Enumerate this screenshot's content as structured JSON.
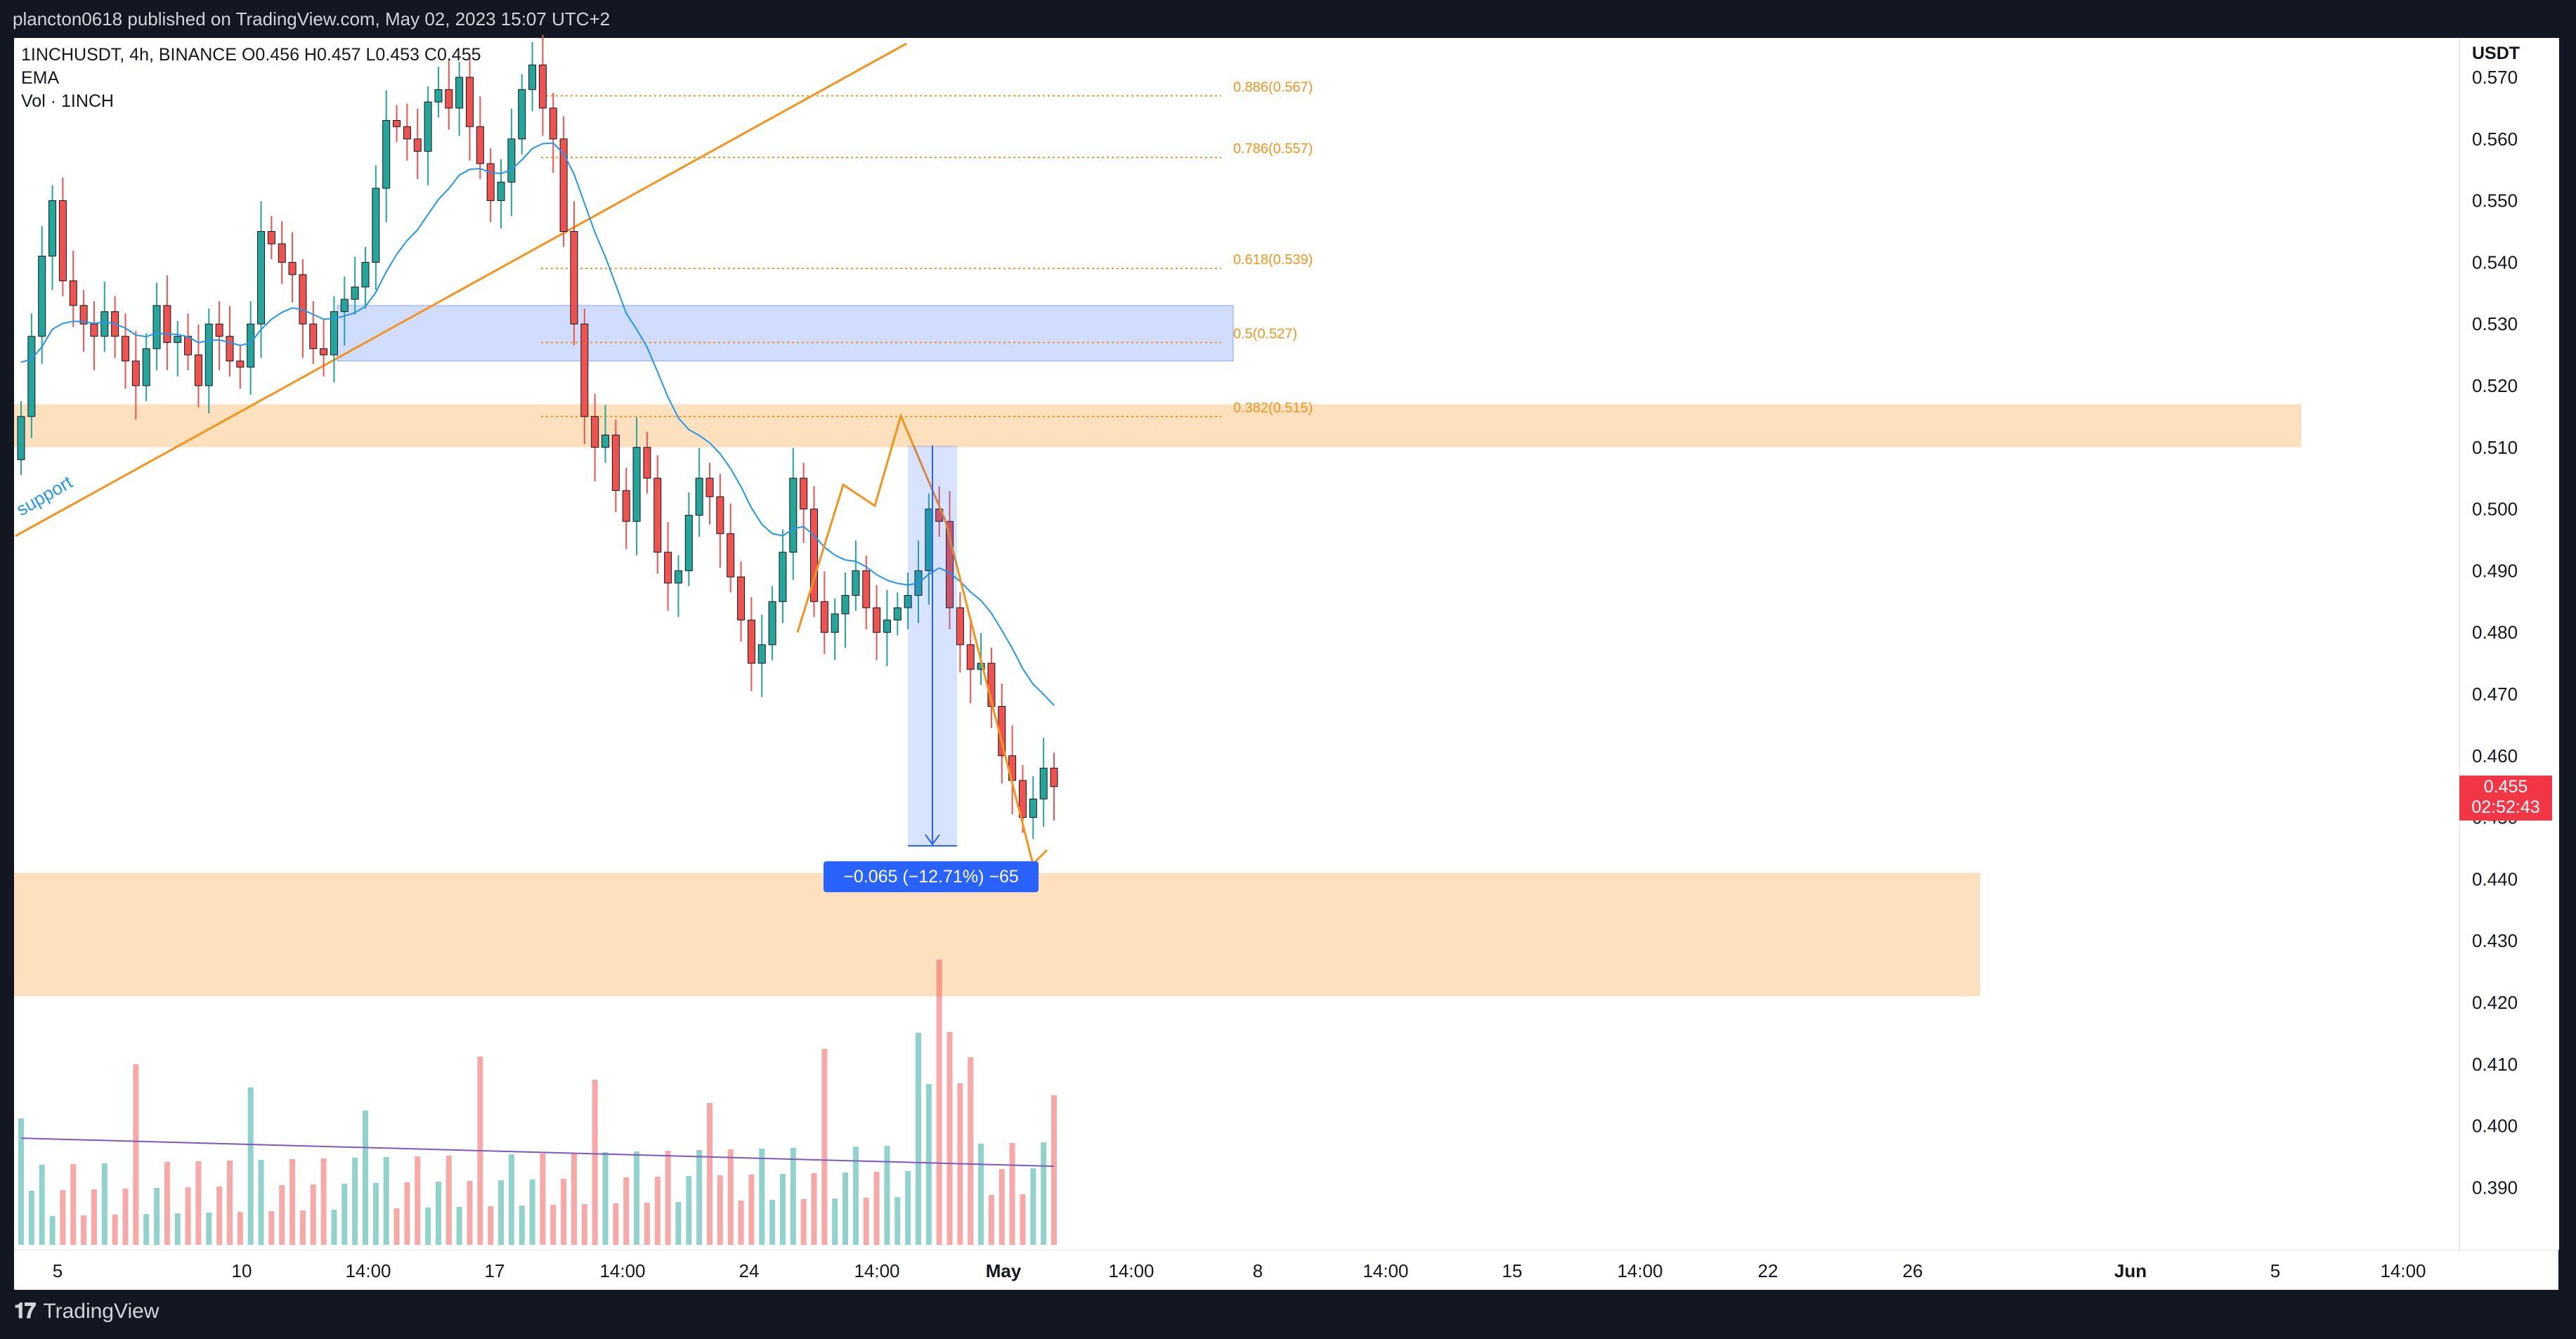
{
  "header": {
    "published_text": "plancton0618 published on TradingView.com, May 02, 2023 15:07 UTC+2"
  },
  "legend": {
    "symbol_line": "1INCHUSDT, 4h, BINANCE  O0.456  H0.457  L0.453  C0.455",
    "ema_label": "EMA",
    "volume_label": "Vol · 1INCH"
  },
  "price_axis": {
    "unit": "USDT",
    "labels": [
      "0.570",
      "0.560",
      "0.550",
      "0.540",
      "0.530",
      "0.520",
      "0.510",
      "0.500",
      "0.490",
      "0.480",
      "0.470",
      "0.460",
      "0.450",
      "0.440",
      "0.430",
      "0.420",
      "0.410",
      "0.400",
      "0.390"
    ],
    "last_price": "0.455",
    "countdown": "02:52:43"
  },
  "time_axis": {
    "labels": [
      "5",
      "10",
      "14:00",
      "17",
      "14:00",
      "24",
      "14:00",
      "May",
      "14:00",
      "8",
      "14:00",
      "15",
      "14:00",
      "22",
      "26",
      "Jun",
      "5",
      "14:00"
    ]
  },
  "footer": {
    "brand": "TradingView",
    "logo_icon": "tradingview-logo-icon"
  },
  "annotations": {
    "trendline_label": "support",
    "measure_label": "−0.065 (−12.71%) −65",
    "fib_levels": [
      {
        "label": "0.886(0.567)",
        "price": 0.567
      },
      {
        "label": "0.786(0.557)",
        "price": 0.557
      },
      {
        "label": "0.618(0.539)",
        "price": 0.539
      },
      {
        "label": "0.5(0.527)",
        "price": 0.527
      },
      {
        "label": "0.382(0.515)",
        "price": 0.515
      }
    ],
    "zones": [
      {
        "name": "blue-zone",
        "low": 0.524,
        "high": 0.533,
        "color": "#2962ff"
      },
      {
        "name": "upper-orange-zone",
        "low": 0.51,
        "high": 0.517,
        "color": "#f7931a"
      },
      {
        "name": "lower-orange-zone",
        "low": 0.421,
        "high": 0.441,
        "color": "#f7931a"
      }
    ]
  },
  "colors": {
    "up": "#26a69a",
    "down": "#ef5350",
    "ema": "#2196f3",
    "fib": "#f7931a",
    "volume_ma": "#7e57c2",
    "price_badge": "#f23645"
  },
  "chart_data": {
    "type": "candlestick",
    "symbol": "1INCHUSDT",
    "timeframe": "4h",
    "exchange": "BINANCE",
    "ylim": [
      0.381,
      0.573
    ],
    "ohlc_close_path": [
      0.515,
      0.528,
      0.541,
      0.55,
      0.537,
      0.533,
      0.53,
      0.528,
      0.532,
      0.528,
      0.524,
      0.52,
      0.526,
      0.533,
      0.527,
      0.528,
      0.525,
      0.52,
      0.53,
      0.528,
      0.524,
      0.523,
      0.53,
      0.545,
      0.543,
      0.54,
      0.538,
      0.53,
      0.526,
      0.525,
      0.532,
      0.534,
      0.536,
      0.54,
      0.552,
      0.563,
      0.562,
      0.56,
      0.558,
      0.566,
      0.568,
      0.565,
      0.57,
      0.562,
      0.556,
      0.55,
      0.553,
      0.56,
      0.568,
      0.572,
      0.565,
      0.56,
      0.545,
      0.53,
      0.515,
      0.51,
      0.512,
      0.503,
      0.498,
      0.51,
      0.505,
      0.493,
      0.488,
      0.49,
      0.499,
      0.505,
      0.502,
      0.496,
      0.489,
      0.482,
      0.475,
      0.478,
      0.485,
      0.493,
      0.505,
      0.5,
      0.485,
      0.48,
      0.483,
      0.486,
      0.49,
      0.484,
      0.48,
      0.482,
      0.484,
      0.486,
      0.49,
      0.5,
      0.498,
      0.484,
      0.478,
      0.474,
      0.475,
      0.468,
      0.46,
      0.456,
      0.45,
      0.453,
      0.458,
      0.455
    ],
    "ema_series_start": 0.525,
    "volume_ma_level": 0.398
  }
}
